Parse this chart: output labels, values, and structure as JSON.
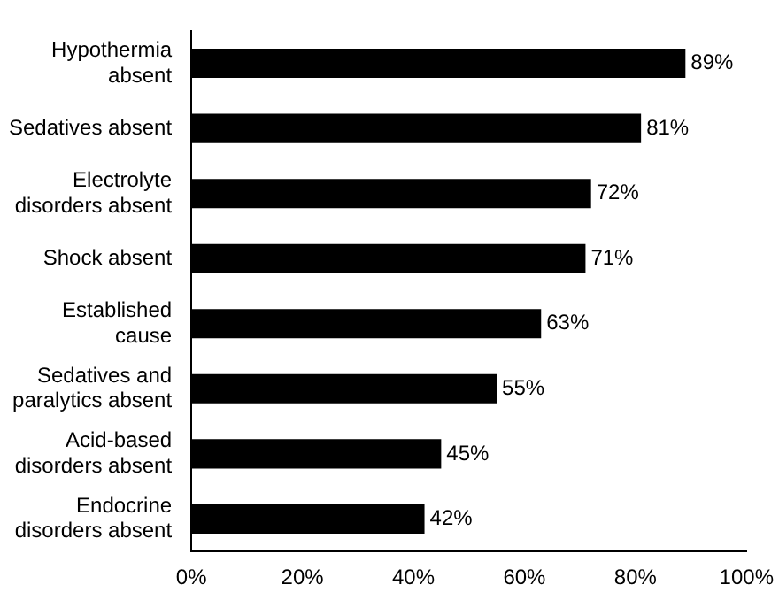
{
  "chart_data": {
    "type": "bar",
    "orientation": "horizontal",
    "categories": [
      "Hypothermia absent",
      "Sedatives absent",
      "Electrolyte disorders absent",
      "Shock absent",
      "Established cause",
      "Sedatives and paralytics absent",
      "Acid-based disorders absent",
      "Endocrine disorders absent"
    ],
    "values": [
      89,
      81,
      72,
      71,
      63,
      55,
      45,
      42
    ],
    "value_labels": [
      "89%",
      "81%",
      "72%",
      "71%",
      "63%",
      "55%",
      "45%",
      "42%"
    ],
    "color": "#000000",
    "xlim": [
      0,
      100
    ],
    "xticks": [
      {
        "value": 0,
        "label": "0%"
      },
      {
        "value": 20,
        "label": "20%"
      },
      {
        "value": 40,
        "label": "40%"
      },
      {
        "value": 60,
        "label": "60%"
      },
      {
        "value": 80,
        "label": "80%"
      },
      {
        "value": 100,
        "label": "100%"
      }
    ],
    "grid": false,
    "legend": false
  }
}
